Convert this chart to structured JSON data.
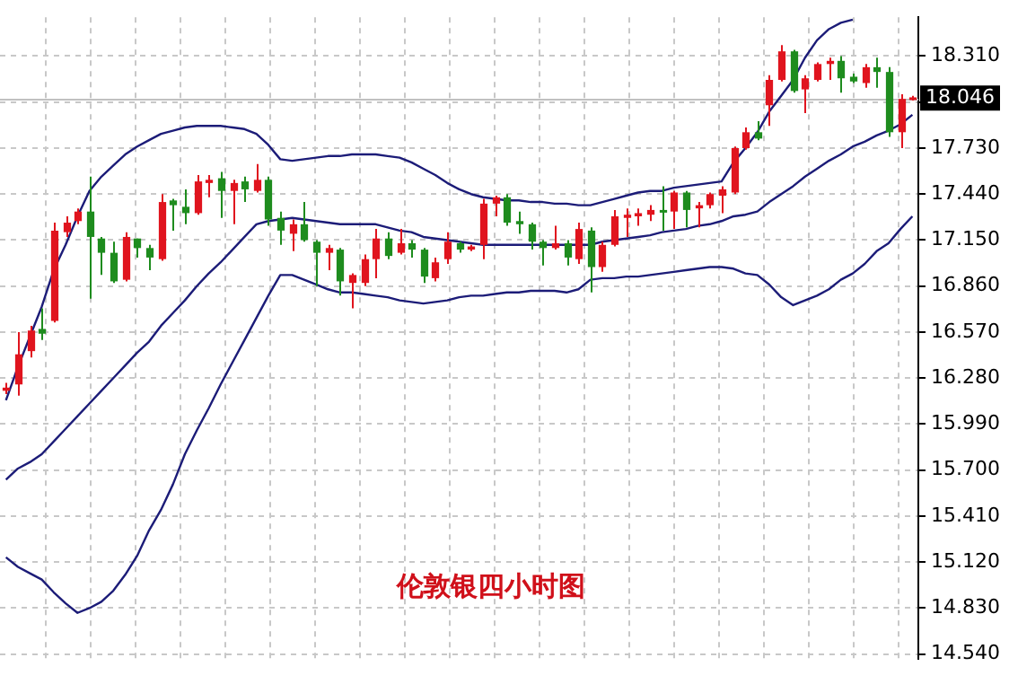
{
  "chart_data": {
    "type": "candlestick",
    "title": "伦敦银四小时图",
    "categories": [
      null,
      null,
      null,
      null,
      null,
      null,
      null,
      null,
      null,
      null,
      null,
      null,
      null,
      null,
      null,
      null,
      null,
      null,
      null,
      null,
      null,
      null,
      null,
      null,
      null,
      null,
      null,
      null,
      null,
      null,
      null,
      null,
      null,
      null,
      null,
      null,
      null,
      null,
      null,
      null,
      null,
      null,
      null,
      null,
      null,
      null,
      null,
      null,
      null,
      null,
      null,
      null,
      null,
      null,
      null,
      null,
      null,
      null,
      null,
      null,
      null,
      null,
      null,
      null,
      null,
      null,
      null,
      null,
      null,
      null,
      null,
      null,
      null,
      null,
      null,
      null,
      null
    ],
    "ohlc": [
      [
        16.2,
        16.25,
        16.18,
        16.22
      ],
      [
        16.24,
        16.57,
        16.17,
        16.43
      ],
      [
        16.45,
        16.61,
        16.41,
        16.58
      ],
      [
        16.59,
        16.72,
        16.52,
        16.56
      ],
      [
        16.64,
        17.26,
        16.63,
        17.21
      ],
      [
        17.2,
        17.3,
        17.17,
        17.26
      ],
      [
        17.27,
        17.35,
        17.25,
        17.33
      ],
      [
        17.33,
        17.55,
        16.78,
        17.17
      ],
      [
        17.16,
        17.17,
        16.93,
        17.07
      ],
      [
        17.07,
        17.14,
        16.88,
        16.89
      ],
      [
        16.9,
        17.2,
        16.89,
        17.17
      ],
      [
        17.16,
        17.16,
        17.04,
        17.1
      ],
      [
        17.1,
        17.12,
        16.96,
        17.04
      ],
      [
        17.03,
        17.44,
        17.02,
        17.39
      ],
      [
        17.4,
        17.41,
        17.21,
        17.37
      ],
      [
        17.36,
        17.47,
        17.25,
        17.32
      ],
      [
        17.32,
        17.56,
        17.31,
        17.52
      ],
      [
        17.51,
        17.56,
        17.42,
        17.53
      ],
      [
        17.54,
        17.58,
        17.29,
        17.46
      ],
      [
        17.46,
        17.53,
        17.25,
        17.51
      ],
      [
        17.52,
        17.55,
        17.39,
        17.47
      ],
      [
        17.46,
        17.63,
        17.45,
        17.53
      ],
      [
        17.53,
        17.55,
        17.24,
        17.28
      ],
      [
        17.29,
        17.33,
        17.12,
        17.21
      ],
      [
        17.19,
        17.28,
        17.08,
        17.25
      ],
      [
        17.25,
        17.39,
        17.14,
        17.15
      ],
      [
        17.14,
        17.15,
        16.86,
        17.07
      ],
      [
        17.07,
        17.12,
        16.96,
        17.1
      ],
      [
        17.09,
        17.1,
        16.8,
        16.89
      ],
      [
        16.88,
        16.94,
        16.72,
        16.93
      ],
      [
        16.88,
        17.06,
        16.86,
        17.03
      ],
      [
        17.03,
        17.22,
        16.91,
        17.16
      ],
      [
        17.16,
        17.2,
        17.03,
        17.05
      ],
      [
        17.07,
        17.22,
        17.06,
        17.13
      ],
      [
        17.13,
        17.15,
        17.04,
        17.09
      ],
      [
        17.09,
        17.1,
        16.88,
        16.92
      ],
      [
        16.91,
        17.04,
        16.89,
        17.01
      ],
      [
        17.03,
        17.2,
        17.0,
        17.14
      ],
      [
        17.13,
        17.14,
        17.07,
        17.09
      ],
      [
        17.09,
        17.12,
        17.08,
        17.11
      ],
      [
        17.12,
        17.41,
        17.03,
        17.38
      ],
      [
        17.38,
        17.43,
        17.3,
        17.42
      ],
      [
        17.42,
        17.44,
        17.24,
        17.26
      ],
      [
        17.27,
        17.33,
        17.19,
        17.25
      ],
      [
        17.25,
        17.26,
        17.09,
        17.14
      ],
      [
        17.14,
        17.15,
        16.99,
        17.1
      ],
      [
        17.1,
        17.24,
        17.09,
        17.13
      ],
      [
        17.13,
        17.15,
        16.99,
        17.04
      ],
      [
        17.03,
        17.26,
        17.0,
        17.22
      ],
      [
        17.21,
        17.23,
        16.82,
        16.98
      ],
      [
        16.98,
        17.14,
        16.95,
        17.12
      ],
      [
        17.12,
        17.34,
        17.11,
        17.3
      ],
      [
        17.29,
        17.35,
        17.17,
        17.31
      ],
      [
        17.3,
        17.35,
        17.24,
        17.32
      ],
      [
        17.31,
        17.37,
        17.27,
        17.34
      ],
      [
        17.34,
        17.49,
        17.21,
        17.33
      ],
      [
        17.33,
        17.46,
        17.22,
        17.45
      ],
      [
        17.45,
        17.46,
        17.23,
        17.34
      ],
      [
        17.35,
        17.39,
        17.23,
        17.37
      ],
      [
        17.37,
        17.45,
        17.35,
        17.44
      ],
      [
        17.43,
        17.49,
        17.32,
        17.47
      ],
      [
        17.45,
        17.74,
        17.44,
        17.73
      ],
      [
        17.73,
        17.86,
        17.72,
        17.83
      ],
      [
        17.83,
        17.9,
        17.78,
        17.79
      ],
      [
        18.0,
        18.19,
        17.87,
        18.16
      ],
      [
        18.16,
        18.38,
        18.15,
        18.34
      ],
      [
        18.34,
        18.35,
        18.08,
        18.09
      ],
      [
        18.1,
        18.19,
        17.95,
        18.17
      ],
      [
        18.16,
        18.27,
        18.15,
        18.26
      ],
      [
        18.26,
        18.3,
        18.16,
        18.28
      ],
      [
        18.28,
        18.31,
        18.08,
        18.17
      ],
      [
        18.18,
        18.2,
        18.14,
        18.15
      ],
      [
        18.14,
        18.26,
        18.11,
        18.24
      ],
      [
        18.24,
        18.3,
        18.11,
        18.21
      ],
      [
        18.21,
        18.24,
        17.8,
        17.83
      ],
      [
        17.83,
        18.07,
        17.73,
        18.04
      ],
      [
        18.04,
        18.06,
        18.03,
        18.05
      ]
    ],
    "colors": [
      "#e0141e",
      "#e0141e",
      "#e0141e",
      "#1e8c1e",
      "#e0141e",
      "#e0141e",
      "#e0141e",
      "#1e8c1e",
      "#1e8c1e",
      "#1e8c1e",
      "#e0141e",
      "#1e8c1e",
      "#1e8c1e",
      "#e0141e",
      "#1e8c1e",
      "#1e8c1e",
      "#e0141e",
      "#e0141e",
      "#1e8c1e",
      "#e0141e",
      "#1e8c1e",
      "#e0141e",
      "#1e8c1e",
      "#1e8c1e",
      "#e0141e",
      "#1e8c1e",
      "#1e8c1e",
      "#e0141e",
      "#1e8c1e",
      "#e0141e",
      "#e0141e",
      "#e0141e",
      "#1e8c1e",
      "#e0141e",
      "#1e8c1e",
      "#1e8c1e",
      "#e0141e",
      "#e0141e",
      "#1e8c1e",
      "#e0141e",
      "#e0141e",
      "#e0141e",
      "#1e8c1e",
      "#1e8c1e",
      "#1e8c1e",
      "#1e8c1e",
      "#e0141e",
      "#1e8c1e",
      "#e0141e",
      "#1e8c1e",
      "#e0141e",
      "#e0141e",
      "#e0141e",
      "#e0141e",
      "#e0141e",
      "#1e8c1e",
      "#e0141e",
      "#1e8c1e",
      "#e0141e",
      "#e0141e",
      "#e0141e",
      "#e0141e",
      "#e0141e",
      "#1e8c1e",
      "#e0141e",
      "#e0141e",
      "#1e8c1e",
      "#e0141e",
      "#e0141e",
      "#e0141e",
      "#1e8c1e",
      "#1e8c1e",
      "#e0141e",
      "#1e8c1e",
      "#1e8c1e",
      "#e0141e",
      "#e0141e"
    ],
    "series": [
      {
        "type": "line",
        "color": "#1c1c78",
        "values": [
          16.14,
          16.35,
          16.54,
          16.73,
          16.96,
          17.12,
          17.3,
          17.46,
          17.55,
          17.62,
          17.69,
          17.74,
          17.78,
          17.82,
          17.84,
          17.86,
          17.87,
          17.87,
          17.87,
          17.86,
          17.85,
          17.82,
          17.75,
          17.66,
          17.65,
          17.66,
          17.67,
          17.68,
          17.68,
          17.69,
          17.69,
          17.69,
          17.68,
          17.67,
          17.64,
          17.6,
          17.56,
          17.51,
          17.47,
          17.44,
          17.42,
          17.41,
          17.4,
          17.4,
          17.39,
          17.39,
          17.38,
          17.38,
          17.37,
          17.37,
          17.39,
          17.41,
          17.43,
          17.45,
          17.46,
          17.46,
          17.48,
          17.49,
          17.5,
          17.51,
          17.52,
          17.64,
          17.73,
          17.83,
          17.96,
          18.06,
          18.16,
          18.3,
          18.41,
          18.48,
          18.52,
          18.54,
          null,
          null,
          null,
          null,
          null
        ]
      },
      {
        "type": "line",
        "color": "#1c1c78",
        "values": [
          15.64,
          15.71,
          15.75,
          15.8,
          15.88,
          15.96,
          16.04,
          16.12,
          16.2,
          16.28,
          16.36,
          16.44,
          16.51,
          16.61,
          16.69,
          16.77,
          16.86,
          16.94,
          17.01,
          17.09,
          17.17,
          17.25,
          17.27,
          17.28,
          17.29,
          17.28,
          17.27,
          17.26,
          17.25,
          17.25,
          17.25,
          17.25,
          17.23,
          17.21,
          17.2,
          17.17,
          17.16,
          17.15,
          17.14,
          17.13,
          17.12,
          17.12,
          17.12,
          17.12,
          17.12,
          17.12,
          17.12,
          17.12,
          17.12,
          17.12,
          17.14,
          17.15,
          17.16,
          17.17,
          17.18,
          17.2,
          17.21,
          17.22,
          17.24,
          17.25,
          17.27,
          17.3,
          17.31,
          17.33,
          17.39,
          17.44,
          17.49,
          17.55,
          17.6,
          17.65,
          17.69,
          17.74,
          17.77,
          17.81,
          17.84,
          17.88,
          17.94
        ]
      },
      {
        "type": "line",
        "color": "#1c1c78",
        "values": [
          15.15,
          15.09,
          15.05,
          15.01,
          14.93,
          14.86,
          14.8,
          14.83,
          14.87,
          14.94,
          15.04,
          15.16,
          15.32,
          15.45,
          15.61,
          15.8,
          15.95,
          16.09,
          16.24,
          16.38,
          16.52,
          16.66,
          16.8,
          16.93,
          16.93,
          16.9,
          16.87,
          16.84,
          16.82,
          16.82,
          16.81,
          16.8,
          16.79,
          16.77,
          16.76,
          16.75,
          16.76,
          16.77,
          16.79,
          16.8,
          16.8,
          16.81,
          16.82,
          16.82,
          16.83,
          16.83,
          16.83,
          16.82,
          16.84,
          16.9,
          16.91,
          16.91,
          16.92,
          16.92,
          16.93,
          16.94,
          16.95,
          16.96,
          16.97,
          16.98,
          16.98,
          16.97,
          16.94,
          16.93,
          16.87,
          16.79,
          16.74,
          16.77,
          16.8,
          16.84,
          16.9,
          16.94,
          17.0,
          17.08,
          17.13,
          17.22,
          17.3
        ]
      }
    ],
    "ylim": [
      14.51,
      18.555
    ],
    "yticks": [
      {
        "value": 14.54,
        "label": "14.540"
      },
      {
        "value": 14.83,
        "label": "14.830"
      },
      {
        "value": 15.12,
        "label": "15.120"
      },
      {
        "value": 15.41,
        "label": "15.410"
      },
      {
        "value": 15.7,
        "label": "15.700"
      },
      {
        "value": 15.99,
        "label": "15.990"
      },
      {
        "value": 16.28,
        "label": "16.280"
      },
      {
        "value": 16.57,
        "label": "16.570"
      },
      {
        "value": 16.86,
        "label": "16.860"
      },
      {
        "value": 17.15,
        "label": "17.150"
      },
      {
        "value": 17.44,
        "label": "17.440"
      },
      {
        "value": 17.73,
        "label": "17.730"
      },
      {
        "value": 18.02,
        "label": null
      },
      {
        "value": 18.31,
        "label": "18.310"
      }
    ],
    "ref_lines": [
      {
        "axis": "y",
        "value": 18.046,
        "label": "18.046",
        "color": "#c0c0c0"
      }
    ],
    "grid": true,
    "tick_labels": "y"
  }
}
